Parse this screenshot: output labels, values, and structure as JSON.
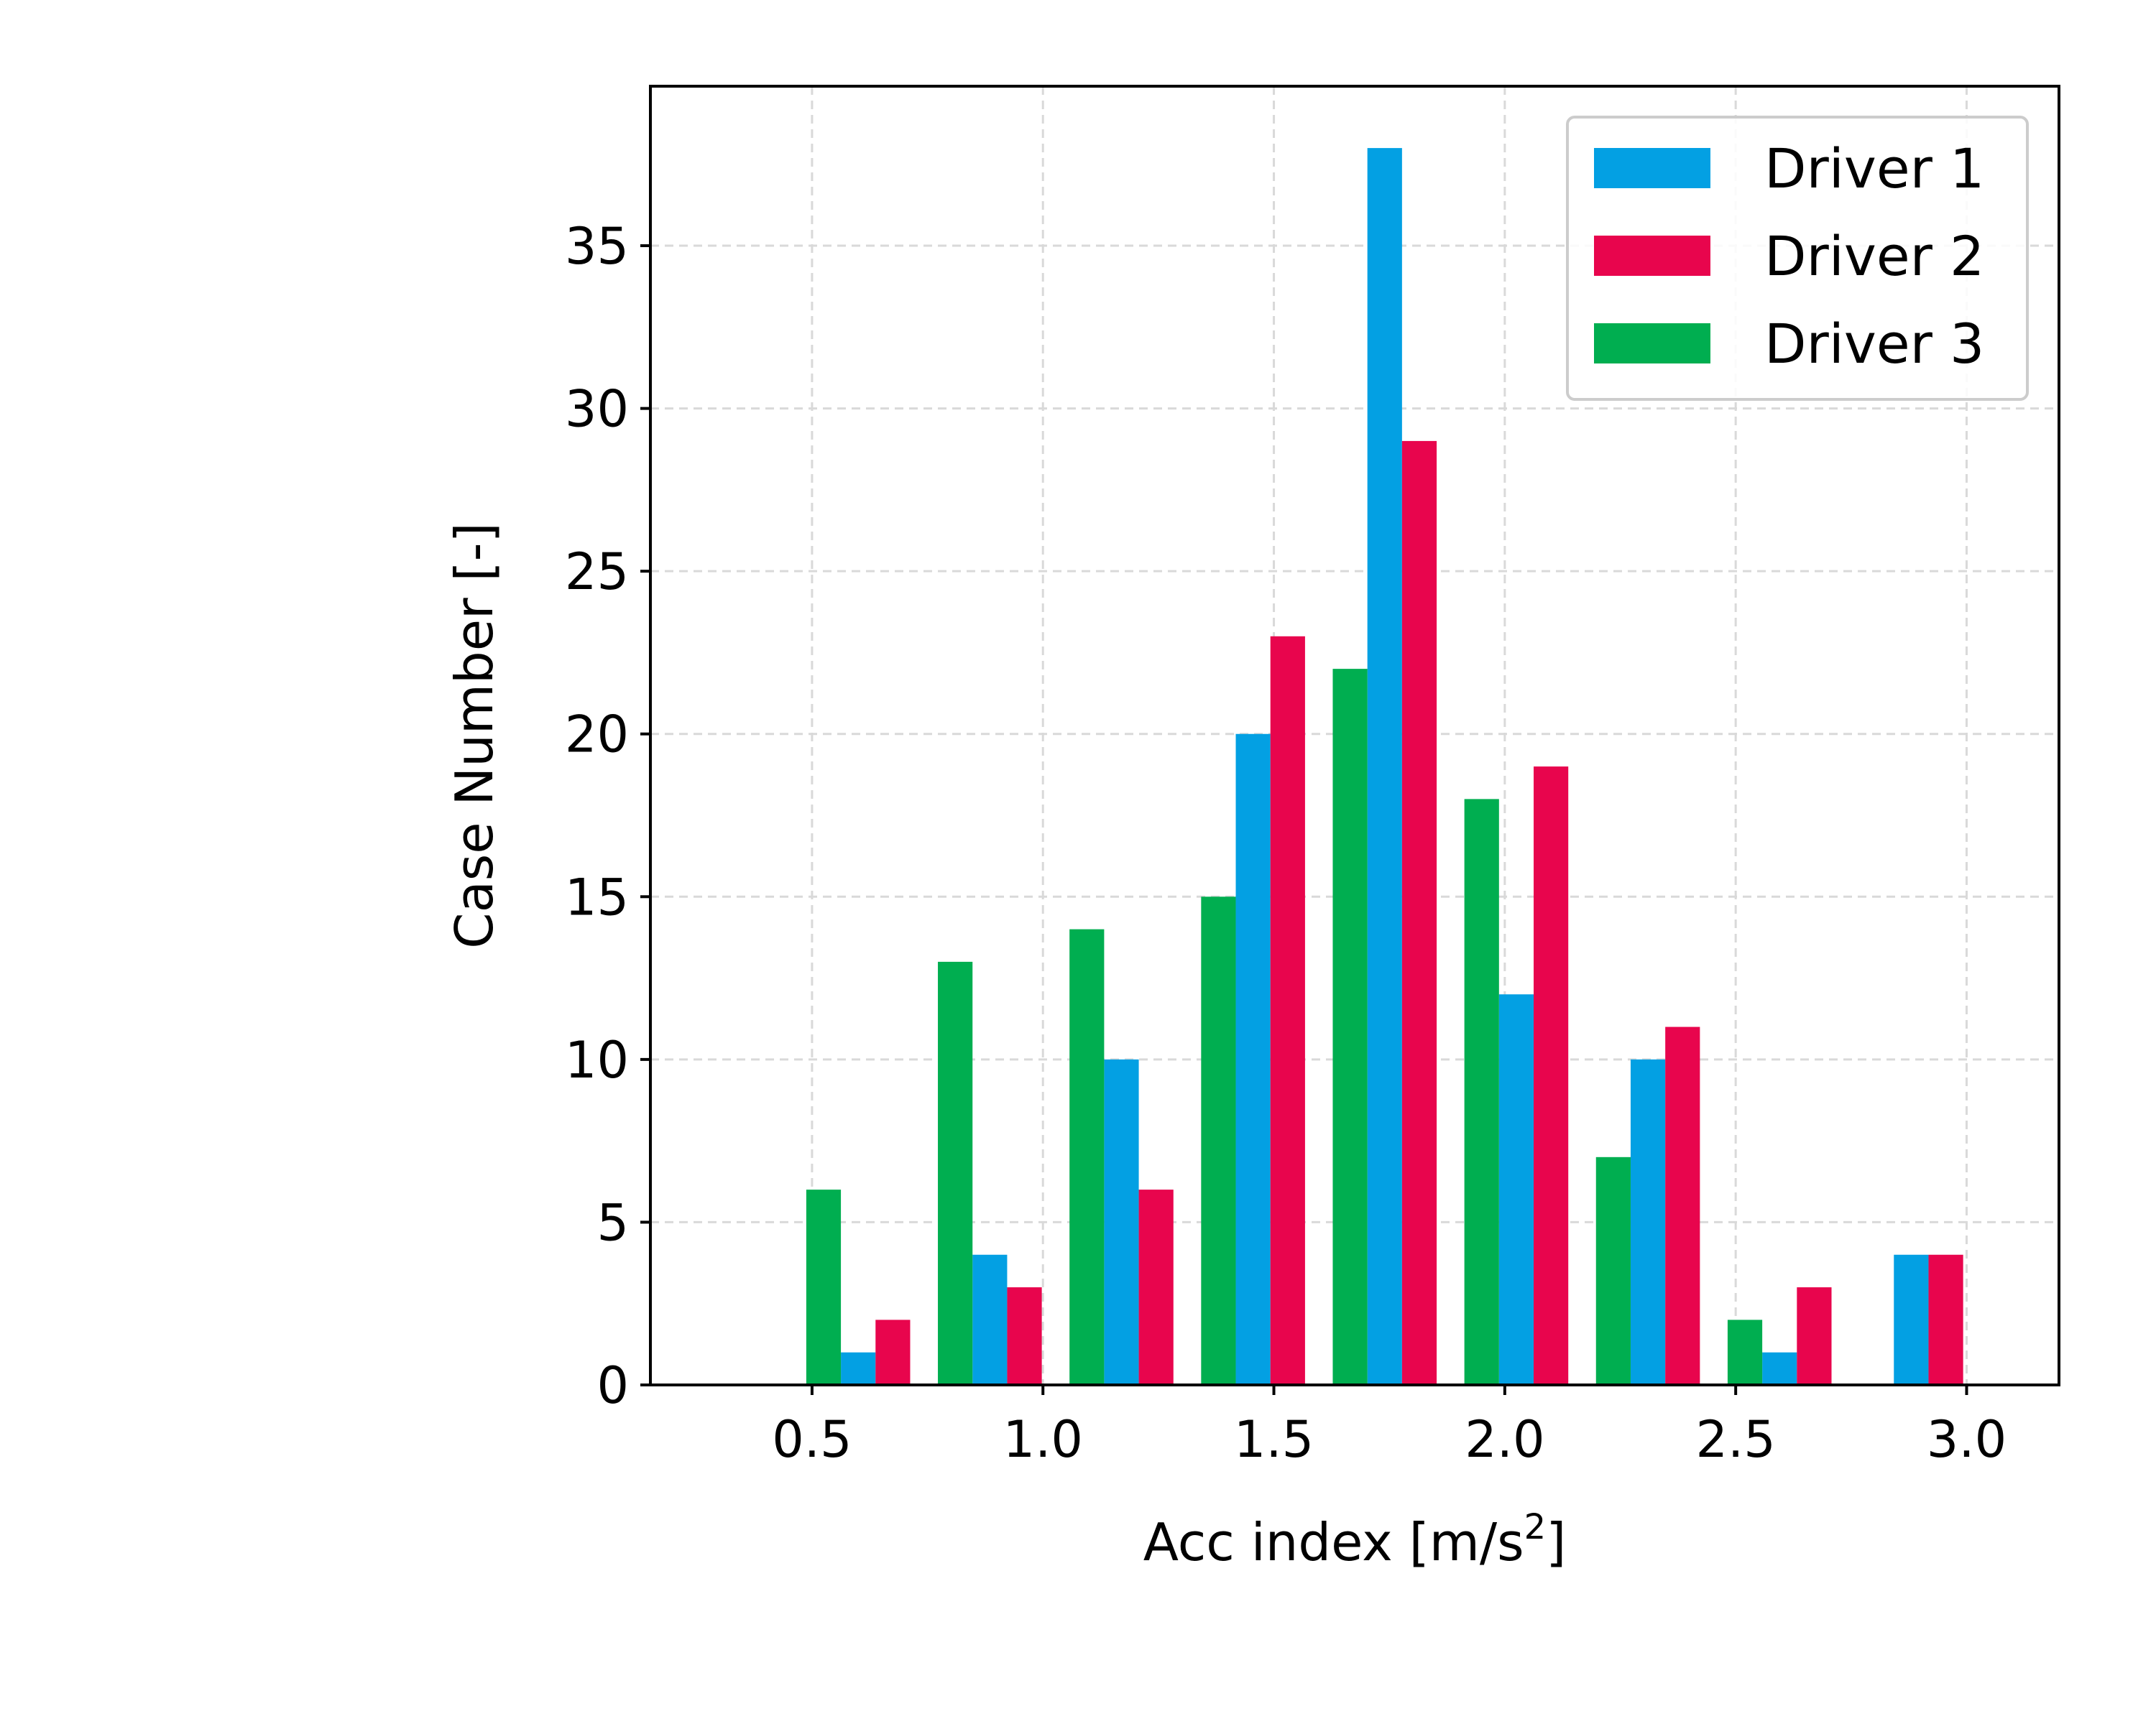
{
  "chart_data": {
    "type": "bar",
    "xlabel": "Acc index [m/s",
    "xlabel_sup": "2",
    "xlabel_end": "]",
    "ylabel": "Case Number [-]",
    "xlim": [
      0.15,
      3.2
    ],
    "ylim": [
      0,
      39.9
    ],
    "xticks": [
      "0.5",
      "1.0",
      "1.5",
      "2.0",
      "2.5",
      "3.0"
    ],
    "yticks": [
      "0",
      "5",
      "10",
      "15",
      "20",
      "25",
      "30",
      "35"
    ],
    "grid": true,
    "legend_position": "top-right",
    "bin_centers": [
      0.6,
      0.885,
      1.17,
      1.455,
      1.74,
      2.025,
      2.31,
      2.595,
      2.88
    ],
    "bar_width": 0.075,
    "series": [
      {
        "name": "Driver 1",
        "color": "#03a0e3",
        "values": [
          1,
          4,
          10,
          20,
          38,
          12,
          10,
          1,
          4
        ]
      },
      {
        "name": "Driver 2",
        "color": "#e8054d",
        "values": [
          2,
          3,
          6,
          23,
          29,
          19,
          11,
          3,
          4
        ]
      },
      {
        "name": "Driver 3",
        "color": "#00ae50",
        "values": [
          6,
          13,
          14,
          15,
          22,
          18,
          7,
          2,
          0
        ]
      }
    ]
  }
}
